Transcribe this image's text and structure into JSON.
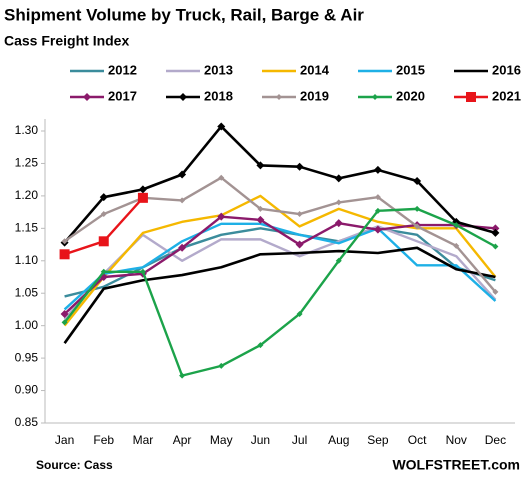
{
  "chart_data": {
    "type": "line",
    "title": "Shipment Volume by Truck, Rail, Barge & Air",
    "subtitle": "Cass Freight Index",
    "source": "Source: Cass",
    "brand": "WOLFSTREET.com",
    "categories": [
      "Jan",
      "Feb",
      "Mar",
      "Apr",
      "May",
      "Jun",
      "Jul",
      "Aug",
      "Sep",
      "Oct",
      "Nov",
      "Dec"
    ],
    "ylim": [
      0.85,
      1.3
    ],
    "yticks": [
      0.85,
      {
        "value": 0.9,
        "label": "0.90"
      },
      0.95,
      {
        "value": 1.0,
        "label": "1.00"
      },
      1.05,
      {
        "value": 1.1,
        "label": "1.10"
      },
      1.15,
      {
        "value": 1.2,
        "label": "1.20"
      },
      1.25,
      {
        "value": 1.3,
        "label": "1.30"
      }
    ],
    "grid": false,
    "series": [
      {
        "name": "2012",
        "color": "#3b8c9c",
        "marker": null,
        "values": [
          1.045,
          1.06,
          1.09,
          1.12,
          1.14,
          1.15,
          1.14,
          1.13,
          1.15,
          1.14,
          1.09,
          1.07
        ]
      },
      {
        "name": "2013",
        "color": "#b3aacb",
        "marker": null,
        "values": [
          1.01,
          1.08,
          1.14,
          1.1,
          1.133,
          1.133,
          1.107,
          1.13,
          1.153,
          1.13,
          1.107,
          1.04
        ]
      },
      {
        "name": "2014",
        "color": "#f5b800",
        "marker": null,
        "values": [
          1.0,
          1.075,
          1.143,
          1.16,
          1.17,
          1.2,
          1.153,
          1.18,
          1.16,
          1.15,
          1.15,
          1.075
        ]
      },
      {
        "name": "2015",
        "color": "#1eb0e6",
        "marker": null,
        "values": [
          1.025,
          1.08,
          1.09,
          1.13,
          1.157,
          1.157,
          1.14,
          1.127,
          1.15,
          1.093,
          1.093,
          1.038
        ]
      },
      {
        "name": "2016",
        "color": "#000000",
        "marker": null,
        "values": [
          0.973,
          1.057,
          1.07,
          1.078,
          1.09,
          1.11,
          1.112,
          1.115,
          1.112,
          1.12,
          1.087,
          1.075
        ]
      },
      {
        "name": "2017",
        "color": "#8b1a6b",
        "marker": "diamond",
        "values": [
          1.018,
          1.075,
          1.08,
          1.12,
          1.168,
          1.163,
          1.125,
          1.158,
          1.148,
          1.155,
          1.155,
          1.15
        ]
      },
      {
        "name": "2018",
        "color": "#000000",
        "marker": "diamond",
        "values": [
          1.128,
          1.198,
          1.21,
          1.233,
          1.307,
          1.247,
          1.245,
          1.227,
          1.24,
          1.223,
          1.16,
          1.143
        ]
      },
      {
        "name": "2019",
        "color": "#a39393",
        "marker": "diamond",
        "values": [
          1.13,
          1.172,
          1.197,
          1.193,
          1.228,
          1.18,
          1.172,
          1.19,
          1.198,
          1.153,
          1.123,
          1.052
        ]
      },
      {
        "name": "2020",
        "color": "#1ca34a",
        "marker": "diamond",
        "values": [
          1.005,
          1.083,
          1.083,
          0.923,
          0.938,
          0.97,
          1.018,
          1.1,
          1.177,
          1.18,
          1.155,
          1.122
        ]
      },
      {
        "name": "2021",
        "color": "#e8141a",
        "marker": "square",
        "values": [
          1.11,
          1.13,
          1.197,
          null,
          null,
          null,
          null,
          null,
          null,
          null,
          null,
          null
        ]
      }
    ]
  }
}
